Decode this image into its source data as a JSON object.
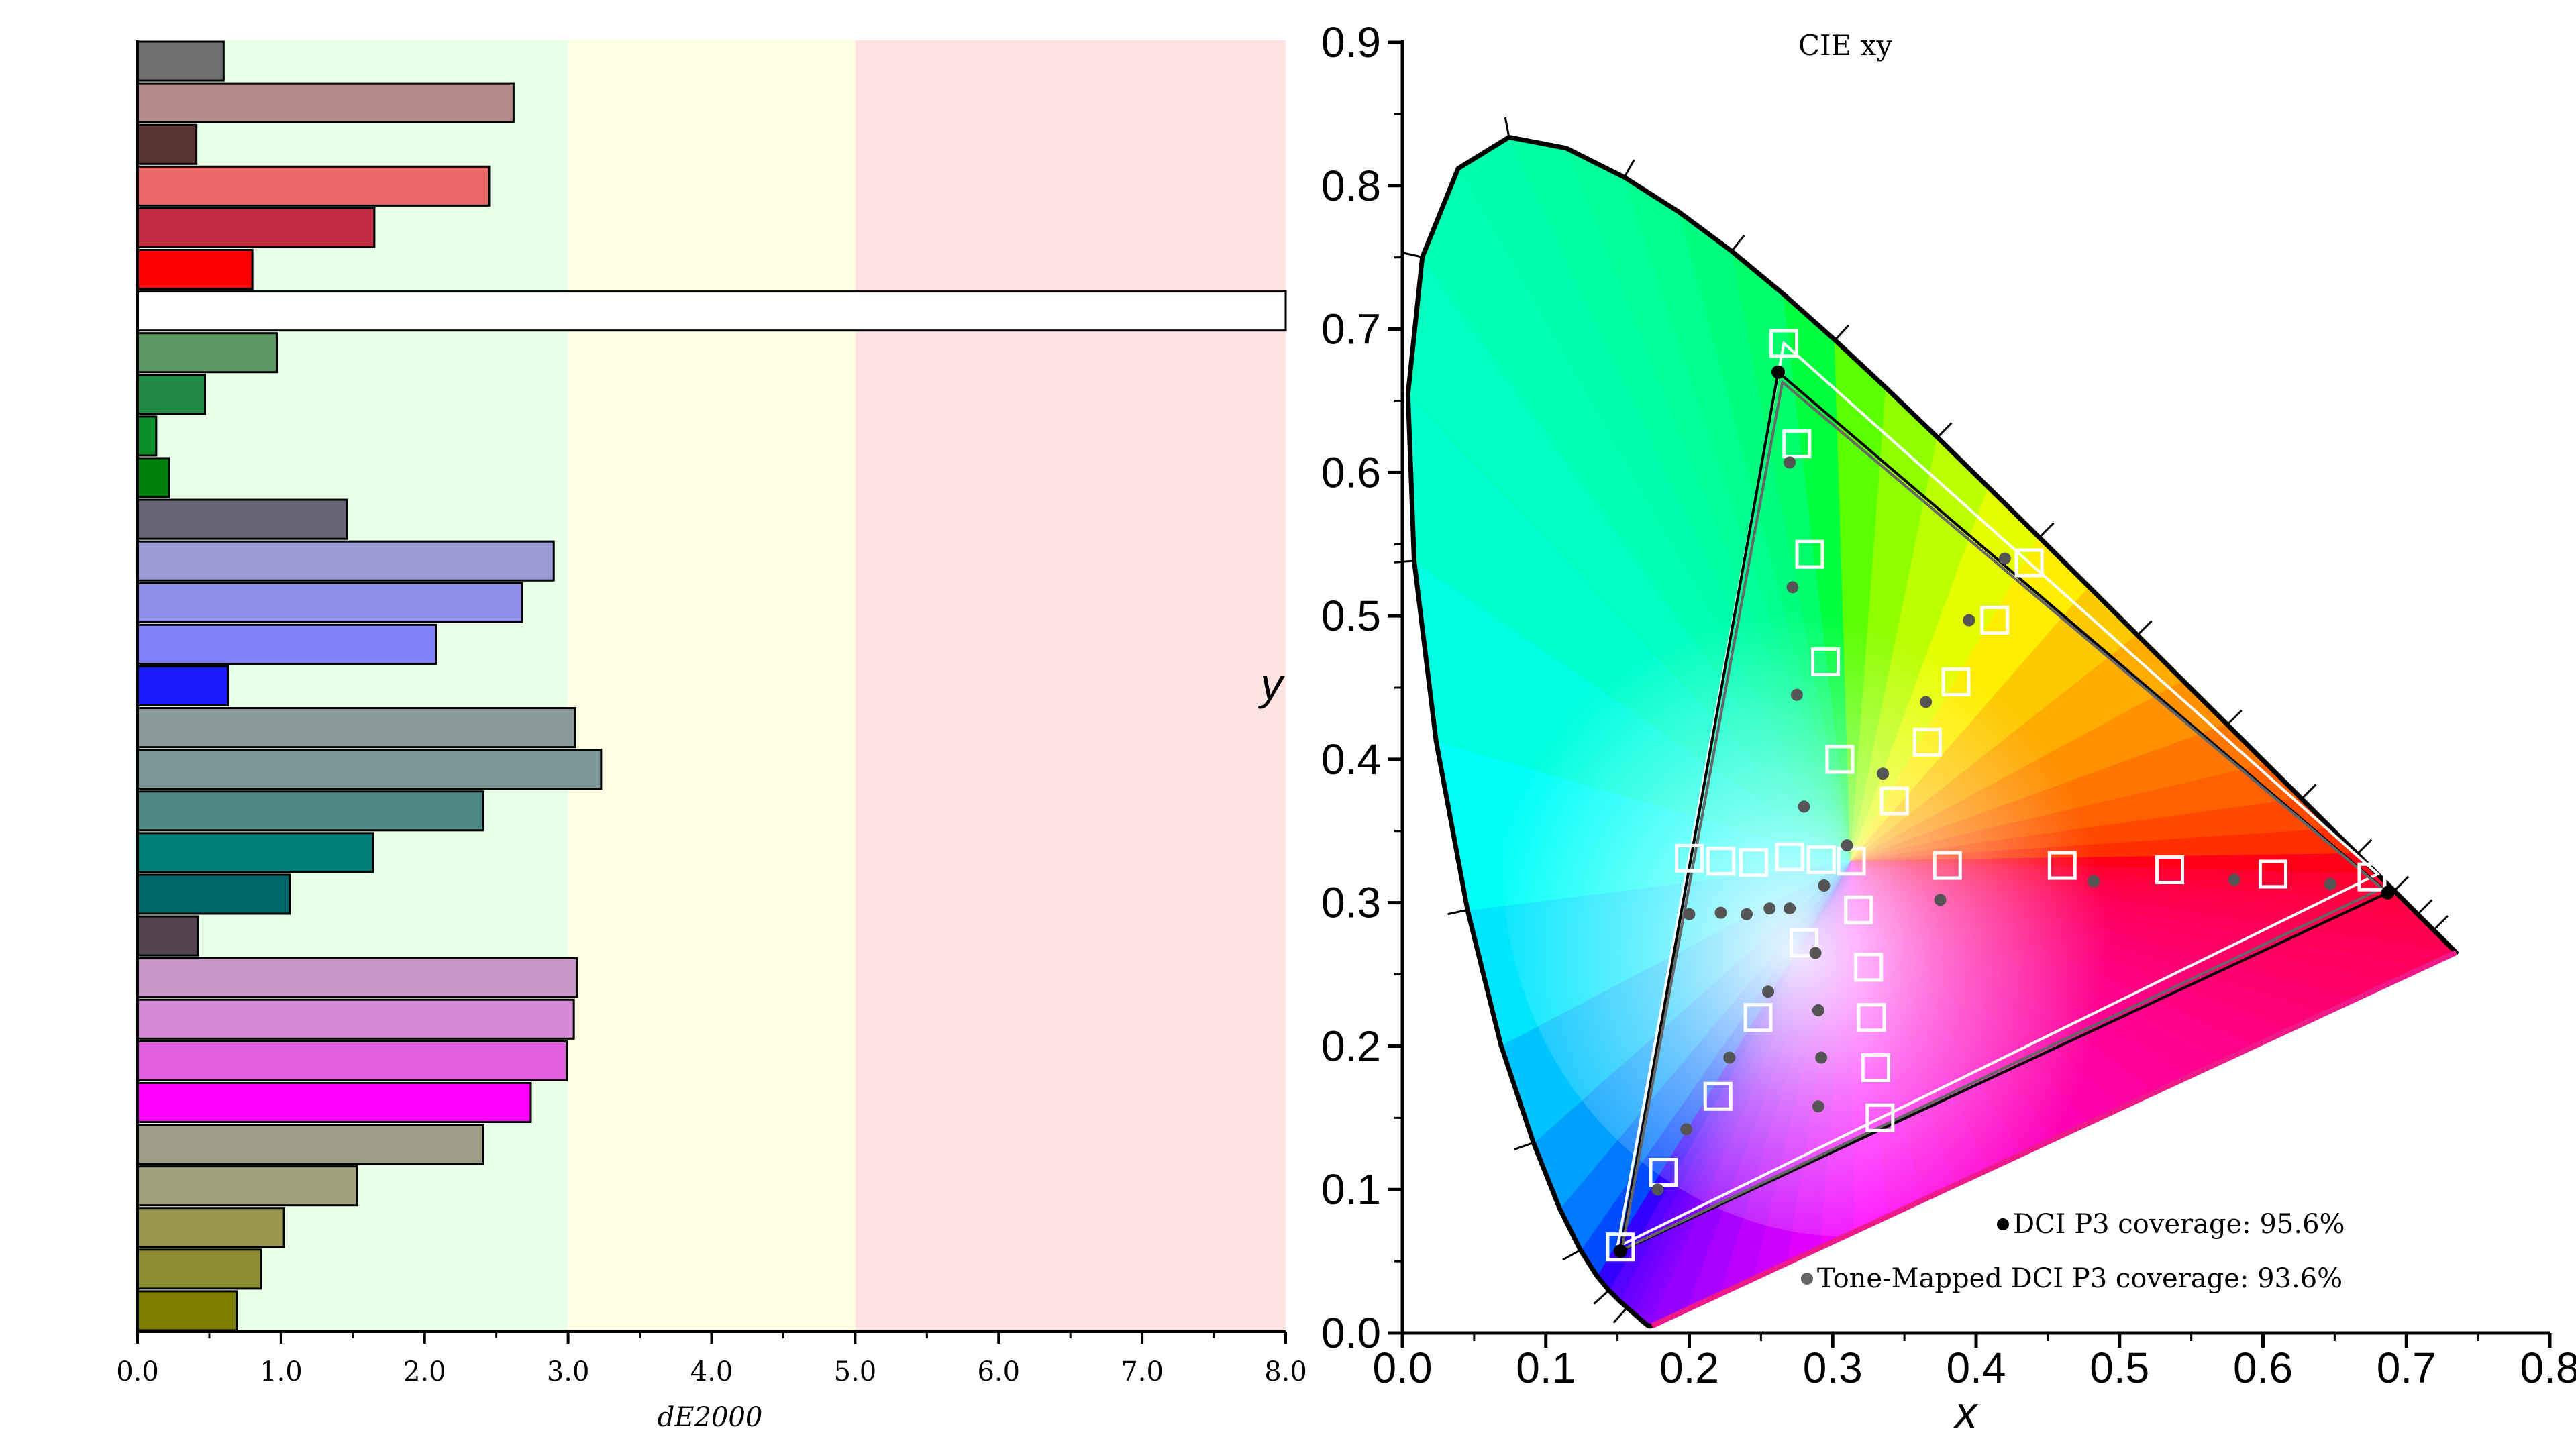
{
  "chart_data": [
    {
      "type": "bar",
      "orientation": "horizontal",
      "xlabel": "dE2000",
      "xlim": [
        0,
        8
      ],
      "x_ticks": [
        "0.0",
        "1.0",
        "2.0",
        "3.0",
        "4.0",
        "5.0",
        "6.0",
        "7.0",
        "8.0"
      ],
      "zones": [
        {
          "from": 0,
          "to": 3,
          "color": "#e8ffe8"
        },
        {
          "from": 3,
          "to": 5,
          "color": "#ffffe3"
        },
        {
          "from": 5,
          "to": 8,
          "color": "#ffe3e3"
        }
      ],
      "bars": [
        {
          "value": 0.6,
          "color": "#6e6e6e"
        },
        {
          "value": 2.62,
          "color": "#b48b8b"
        },
        {
          "value": 0.41,
          "color": "#5a3333"
        },
        {
          "value": 2.45,
          "color": "#ea6767"
        },
        {
          "value": 1.65,
          "color": "#c12c42"
        },
        {
          "value": 0.8,
          "color": "#ff0000"
        },
        {
          "value": 8.0,
          "color": "#ffffff"
        },
        {
          "value": 0.97,
          "color": "#5b9a62"
        },
        {
          "value": 0.47,
          "color": "#1f8b47"
        },
        {
          "value": 0.13,
          "color": "#0a8c27"
        },
        {
          "value": 0.22,
          "color": "#00800a"
        },
        {
          "value": 1.46,
          "color": "#666678"
        },
        {
          "value": 2.9,
          "color": "#9c9cd6"
        },
        {
          "value": 2.68,
          "color": "#9090e8"
        },
        {
          "value": 2.08,
          "color": "#8282fd"
        },
        {
          "value": 0.63,
          "color": "#1a1aff"
        },
        {
          "value": 3.05,
          "color": "#8a9a98"
        },
        {
          "value": 3.23,
          "color": "#7a9696"
        },
        {
          "value": 2.41,
          "color": "#4d8a86"
        },
        {
          "value": 1.64,
          "color": "#007e78"
        },
        {
          "value": 1.06,
          "color": "#00686a"
        },
        {
          "value": 0.42,
          "color": "#54434f"
        },
        {
          "value": 3.06,
          "color": "#c896c8"
        },
        {
          "value": 3.04,
          "color": "#d48ad4"
        },
        {
          "value": 2.99,
          "color": "#e45fe0"
        },
        {
          "value": 2.74,
          "color": "#ff00ff"
        },
        {
          "value": 2.41,
          "color": "#9e9e88"
        },
        {
          "value": 1.53,
          "color": "#a0a07a"
        },
        {
          "value": 1.02,
          "color": "#98964c"
        },
        {
          "value": 0.86,
          "color": "#8c8c33"
        },
        {
          "value": 0.69,
          "color": "#7c7c00"
        }
      ]
    },
    {
      "type": "scatter",
      "title": "CIE xy",
      "xlabel": "x",
      "ylabel": "y",
      "xlim": [
        0,
        0.8
      ],
      "ylim": [
        0,
        0.9
      ],
      "x_ticks": [
        "0.0",
        "0.1",
        "0.2",
        "0.3",
        "0.4",
        "0.5",
        "0.6",
        "0.7",
        "0.8"
      ],
      "y_ticks": [
        "0.0",
        "0.1",
        "0.2",
        "0.3",
        "0.4",
        "0.5",
        "0.6",
        "0.7",
        "0.8",
        "0.9"
      ],
      "gamut_triangles": [
        {
          "name": "target",
          "color": "#ffffff",
          "points": [
            [
              0.266,
              0.69
            ],
            [
              0.68,
              0.32
            ],
            [
              0.15,
              0.06
            ]
          ]
        },
        {
          "name": "DCI P3 coverage",
          "color": "#000000",
          "points": [
            [
              0.262,
              0.67
            ],
            [
              0.687,
              0.307
            ],
            [
              0.152,
              0.057
            ]
          ]
        },
        {
          "name": "Tone-Mapped DCI P3 coverage",
          "color": "#666666",
          "points": [
            [
              0.265,
              0.663
            ],
            [
              0.683,
              0.31
            ],
            [
              0.153,
              0.058
            ]
          ]
        }
      ],
      "target_points": [
        [
          0.266,
          0.69
        ],
        [
          0.275,
          0.62
        ],
        [
          0.284,
          0.543
        ],
        [
          0.295,
          0.468
        ],
        [
          0.305,
          0.4
        ],
        [
          0.313,
          0.329
        ],
        [
          0.437,
          0.537
        ],
        [
          0.413,
          0.497
        ],
        [
          0.386,
          0.454
        ],
        [
          0.366,
          0.412
        ],
        [
          0.343,
          0.371
        ],
        [
          0.2,
          0.331
        ],
        [
          0.222,
          0.329
        ],
        [
          0.245,
          0.328
        ],
        [
          0.27,
          0.332
        ],
        [
          0.292,
          0.33
        ],
        [
          0.38,
          0.326
        ],
        [
          0.46,
          0.326
        ],
        [
          0.535,
          0.323
        ],
        [
          0.607,
          0.32
        ],
        [
          0.676,
          0.318
        ],
        [
          0.318,
          0.295
        ],
        [
          0.28,
          0.272
        ],
        [
          0.325,
          0.255
        ],
        [
          0.248,
          0.22
        ],
        [
          0.327,
          0.22
        ],
        [
          0.22,
          0.165
        ],
        [
          0.33,
          0.185
        ],
        [
          0.333,
          0.15
        ],
        [
          0.182,
          0.112
        ],
        [
          0.152,
          0.06
        ]
      ],
      "measured_points": [
        [
          0.27,
          0.607
        ],
        [
          0.272,
          0.52
        ],
        [
          0.275,
          0.445
        ],
        [
          0.28,
          0.367
        ],
        [
          0.31,
          0.34
        ],
        [
          0.42,
          0.54
        ],
        [
          0.395,
          0.497
        ],
        [
          0.365,
          0.44
        ],
        [
          0.335,
          0.39
        ],
        [
          0.2,
          0.292
        ],
        [
          0.222,
          0.293
        ],
        [
          0.24,
          0.292
        ],
        [
          0.256,
          0.296
        ],
        [
          0.27,
          0.296
        ],
        [
          0.294,
          0.312
        ],
        [
          0.375,
          0.302
        ],
        [
          0.482,
          0.315
        ],
        [
          0.58,
          0.316
        ],
        [
          0.647,
          0.313
        ],
        [
          0.288,
          0.265
        ],
        [
          0.29,
          0.225
        ],
        [
          0.255,
          0.238
        ],
        [
          0.292,
          0.192
        ],
        [
          0.228,
          0.192
        ],
        [
          0.29,
          0.158
        ],
        [
          0.198,
          0.142
        ],
        [
          0.178,
          0.1
        ]
      ],
      "legend": [
        {
          "label": "DCI P3 coverage: 95.6%",
          "marker_color": "#000000"
        },
        {
          "label": "Tone-Mapped DCI P3 coverage: 93.6%",
          "marker_color": "#666666"
        }
      ],
      "legend_position": "bottom-right",
      "locus": [
        [
          0.1741,
          0.005
        ],
        [
          0.174,
          0.005
        ],
        [
          0.1738,
          0.0049
        ],
        [
          0.1736,
          0.0049
        ],
        [
          0.1733,
          0.0048
        ],
        [
          0.173,
          0.0048
        ],
        [
          0.1726,
          0.0048
        ],
        [
          0.1721,
          0.0048
        ],
        [
          0.1714,
          0.0051
        ],
        [
          0.1703,
          0.0058
        ],
        [
          0.1689,
          0.0069
        ],
        [
          0.1669,
          0.0086
        ],
        [
          0.1644,
          0.0109
        ],
        [
          0.1611,
          0.0138
        ],
        [
          0.1566,
          0.0177
        ],
        [
          0.151,
          0.0227
        ],
        [
          0.144,
          0.0297
        ],
        [
          0.1355,
          0.0399
        ],
        [
          0.1241,
          0.0578
        ],
        [
          0.1096,
          0.0868
        ],
        [
          0.0913,
          0.1327
        ],
        [
          0.0687,
          0.2007
        ],
        [
          0.0454,
          0.295
        ],
        [
          0.0235,
          0.4127
        ],
        [
          0.0082,
          0.5384
        ],
        [
          0.0039,
          0.6548
        ],
        [
          0.0139,
          0.7502
        ],
        [
          0.0389,
          0.812
        ],
        [
          0.0743,
          0.8338
        ],
        [
          0.1142,
          0.8262
        ],
        [
          0.1547,
          0.8059
        ],
        [
          0.1929,
          0.7816
        ],
        [
          0.2296,
          0.7543
        ],
        [
          0.2658,
          0.7243
        ],
        [
          0.3016,
          0.6923
        ],
        [
          0.3373,
          0.6589
        ],
        [
          0.3731,
          0.6245
        ],
        [
          0.4087,
          0.5896
        ],
        [
          0.4441,
          0.5547
        ],
        [
          0.4788,
          0.5202
        ],
        [
          0.5125,
          0.4866
        ],
        [
          0.5448,
          0.4544
        ],
        [
          0.5752,
          0.4242
        ],
        [
          0.6029,
          0.3965
        ],
        [
          0.627,
          0.3725
        ],
        [
          0.6482,
          0.3514
        ],
        [
          0.6658,
          0.334
        ],
        [
          0.6801,
          0.3197
        ],
        [
          0.6915,
          0.3083
        ],
        [
          0.7006,
          0.2993
        ],
        [
          0.7079,
          0.292
        ],
        [
          0.714,
          0.2859
        ],
        [
          0.719,
          0.2809
        ],
        [
          0.723,
          0.277
        ],
        [
          0.726,
          0.274
        ],
        [
          0.7283,
          0.2717
        ],
        [
          0.73,
          0.27
        ],
        [
          0.7311,
          0.2689
        ],
        [
          0.732,
          0.268
        ],
        [
          0.7327,
          0.2673
        ],
        [
          0.7334,
          0.2666
        ],
        [
          0.734,
          0.266
        ],
        [
          0.7344,
          0.2656
        ],
        [
          0.7346,
          0.2654
        ],
        [
          0.7347,
          0.2653
        ]
      ]
    }
  ]
}
